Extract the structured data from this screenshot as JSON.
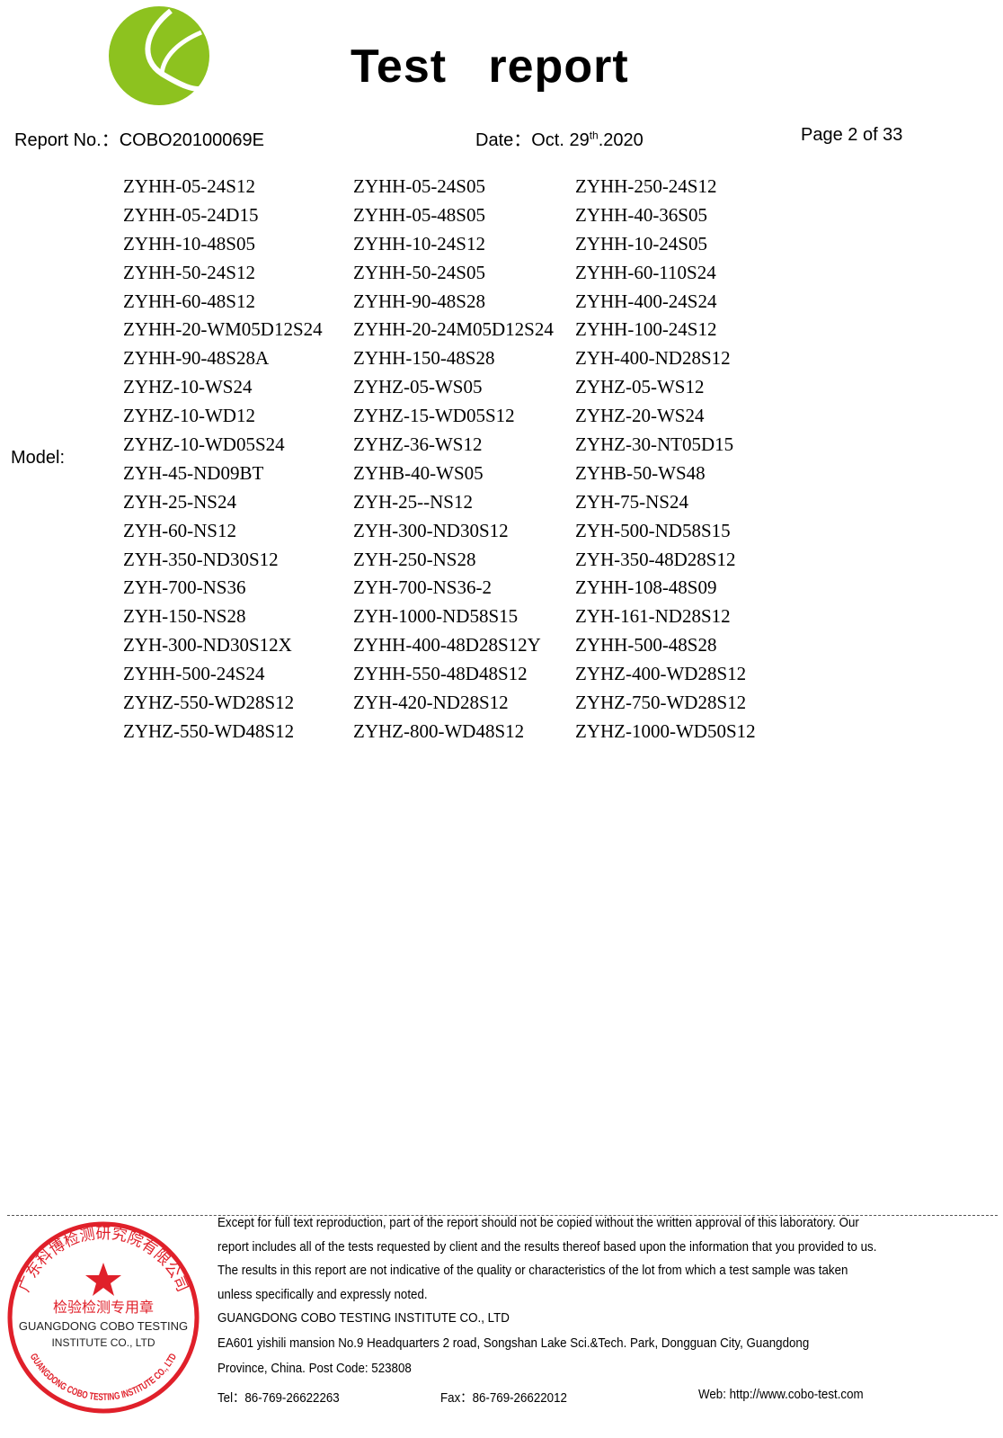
{
  "header": {
    "title": "Test   report",
    "report_no": "Report No.：COBO20100069E",
    "date_prefix": "Date：Oct. 29",
    "date_sup": "th",
    "date_suffix": ".2020",
    "page": "Page 2 of 33",
    "logo_color": "#8DC21F"
  },
  "model_label": "Model:",
  "models": [
    [
      "ZYHH-05-24S12",
      "ZYHH-05-24S05",
      "ZYHH-250-24S12"
    ],
    [
      "ZYHH-05-24D15",
      "ZYHH-05-48S05",
      "ZYHH-40-36S05"
    ],
    [
      "ZYHH-10-48S05",
      "ZYHH-10-24S12",
      "ZYHH-10-24S05"
    ],
    [
      "ZYHH-50-24S12",
      "ZYHH-50-24S05",
      "ZYHH-60-110S24"
    ],
    [
      "ZYHH-60-48S12",
      "ZYHH-90-48S28",
      "ZYHH-400-24S24"
    ],
    [
      "ZYHH-20-WM05D12S24",
      "ZYHH-20-24M05D12S24",
      "ZYHH-100-24S12"
    ],
    [
      "ZYHH-90-48S28A",
      "ZYHH-150-48S28",
      "ZYH-400-ND28S12"
    ],
    [
      "ZYHZ-10-WS24",
      "ZYHZ-05-WS05",
      "ZYHZ-05-WS12"
    ],
    [
      "ZYHZ-10-WD12",
      "ZYHZ-15-WD05S12",
      "ZYHZ-20-WS24"
    ],
    [
      "ZYHZ-10-WD05S24",
      "ZYHZ-36-WS12",
      "ZYHZ-30-NT05D15"
    ],
    [
      "ZYH-45-ND09BT",
      "ZYHB-40-WS05",
      "ZYHB-50-WS48"
    ],
    [
      "ZYH-25-NS24",
      "ZYH-25--NS12",
      "ZYH-75-NS24"
    ],
    [
      "ZYH-60-NS12",
      "ZYH-300-ND30S12",
      "ZYH-500-ND58S15"
    ],
    [
      "ZYH-350-ND30S12",
      "ZYH-250-NS28",
      "ZYH-350-48D28S12"
    ],
    [
      "ZYH-700-NS36",
      "ZYH-700-NS36-2",
      "ZYHH-108-48S09"
    ],
    [
      "ZYH-150-NS28",
      "ZYH-1000-ND58S15",
      "ZYH-161-ND28S12"
    ],
    [
      "ZYH-300-ND30S12X",
      "ZYHH-400-48D28S12Y",
      "ZYHH-500-48S28"
    ],
    [
      "ZYHH-500-24S24",
      "ZYHH-550-48D48S12",
      "ZYHZ-400-WD28S12"
    ],
    [
      "ZYHZ-550-WD28S12",
      "ZYH-420-ND28S12",
      "ZYHZ-750-WD28S12"
    ],
    [
      "ZYHZ-550-WD48S12",
      "ZYHZ-800-WD48S12",
      "ZYHZ-1000-WD50S12"
    ]
  ],
  "footer": {
    "lines": [
      "Except for full text reproduction, part of the report should not be copied without the written approval of this laboratory. Our",
      "report includes all of the tests requested by client and the results thereof based upon the information that you provided to us.",
      "The results in this report are not indicative of the quality or characteristics of the lot from which a test sample was taken",
      "unless specifically and expressly noted.",
      "GUANGDONG COBO TESTING INSTITUTE CO., LTD",
      "EA601 yishili mansion No.9 Headquarters 2 road, Songshan Lake Sci.&Tech. Park, Dongguan City, Guangdong",
      "Province, China. Post Code: 523808"
    ],
    "tel": "Tel：86-769-26622263",
    "fax": "Fax：86-769-26622012",
    "web": "Web: http://www.cobo-test.com"
  },
  "stamp": {
    "ring_text": "广东科博检测研究院有限公司",
    "center_text": "检验检测专用章",
    "line1": "GUANGDONG COBO TESTING",
    "line2": "INSTITUTE CO., LTD",
    "bottom_arc": "GUANGDONG COBO TESTING INSTITUTE CO., LTD",
    "color": "#E0202A"
  }
}
